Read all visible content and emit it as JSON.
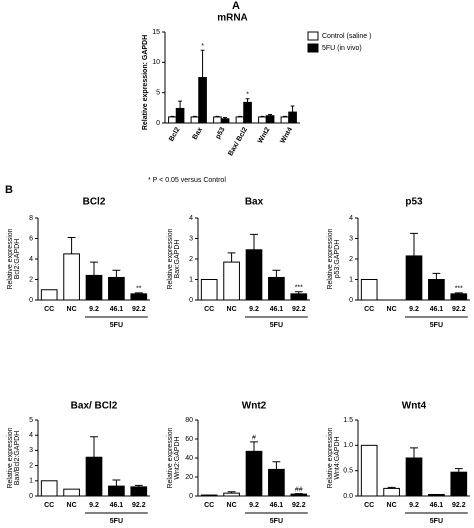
{
  "chart_data": [
    {
      "type": "bar",
      "label": "A",
      "title": "mRNA",
      "ylabel": "Relative expression: GAPDH",
      "categories": [
        "Bcl2",
        "Bax",
        "p53",
        "Bax/ Bcl2",
        "Wnt2",
        "Wnt4"
      ],
      "series": [
        {
          "name": "Control (saline )",
          "color": "#ffffff",
          "values": [
            1.0,
            1.0,
            1.0,
            1.0,
            1.0,
            1.0
          ],
          "errors": [
            0.1,
            0.1,
            0.1,
            0.1,
            0.1,
            0.1
          ],
          "value_annotations": [
            null,
            null,
            null,
            null,
            null,
            null
          ]
        },
        {
          "name": "5FU (in vivo)",
          "color": "#000000",
          "values": [
            2.4,
            7.5,
            0.7,
            3.4,
            1.2,
            1.8
          ],
          "errors": [
            1.2,
            4.5,
            0.2,
            0.6,
            0.2,
            1.0
          ],
          "value_annotations": [
            null,
            "*",
            null,
            "*",
            null,
            null
          ]
        }
      ],
      "ylim": [
        0,
        15
      ],
      "yticks": [
        0,
        5,
        10,
        15
      ],
      "note": "* P < 0.05 versus Control"
    },
    {
      "type": "bar",
      "label": "B",
      "title": "BCl2",
      "ylabel": [
        "Relative expression",
        "Bcl2:GAPDH"
      ],
      "categories": [
        "CC",
        "NC",
        "9.2",
        "46.1",
        "92.2"
      ],
      "group_label": "5FU",
      "values": [
        1.0,
        4.5,
        2.4,
        2.2,
        0.6
      ],
      "errors": [
        null,
        1.6,
        1.3,
        0.7,
        0.1
      ],
      "colors": [
        "#ffffff",
        "#ffffff",
        "#000000",
        "#000000",
        "#000000"
      ],
      "value_annotations": [
        null,
        null,
        null,
        null,
        "**"
      ],
      "ylim": [
        0,
        8
      ],
      "yticks": [
        0,
        2,
        4,
        6,
        8
      ]
    },
    {
      "type": "bar",
      "title": "Bax",
      "ylabel": [
        "Relative expression",
        "Bax:GAPDH"
      ],
      "categories": [
        "CC",
        "NC",
        "9.2",
        "46.1",
        "92.2"
      ],
      "group_label": "5FU",
      "values": [
        1.0,
        1.85,
        2.45,
        1.1,
        0.3
      ],
      "errors": [
        null,
        0.45,
        0.75,
        0.35,
        0.1
      ],
      "colors": [
        "#ffffff",
        "#ffffff",
        "#000000",
        "#000000",
        "#000000"
      ],
      "value_annotations": [
        null,
        null,
        null,
        null,
        "***"
      ],
      "ylim": [
        0,
        4
      ],
      "yticks": [
        0,
        1,
        2,
        3,
        4
      ]
    },
    {
      "type": "bar",
      "title": "p53",
      "ylabel": [
        "Relative expression",
        "p53:GAPDH"
      ],
      "categories": [
        "CC",
        "NC",
        "9.2",
        "46.1",
        "92.2"
      ],
      "group_label": "5FU",
      "values": [
        1.0,
        null,
        2.15,
        1.0,
        0.3
      ],
      "errors": [
        null,
        null,
        1.1,
        0.3,
        0.05
      ],
      "colors": [
        "#ffffff",
        "#ffffff",
        "#000000",
        "#000000",
        "#000000"
      ],
      "value_annotations": [
        null,
        null,
        null,
        null,
        "***"
      ],
      "ylim": [
        0,
        4
      ],
      "yticks": [
        0,
        1,
        2,
        3,
        4
      ]
    },
    {
      "type": "bar",
      "title": "Bax/ BCl2",
      "ylabel": [
        "Relative expression",
        "Bax/Bcl2:GAPDH"
      ],
      "categories": [
        "CC",
        "NC",
        "9.2",
        "46.1",
        "92.2"
      ],
      "group_label": "5FU",
      "values": [
        1.0,
        0.45,
        2.55,
        0.65,
        0.6
      ],
      "errors": [
        null,
        null,
        1.35,
        0.4,
        0.1
      ],
      "colors": [
        "#ffffff",
        "#ffffff",
        "#000000",
        "#000000",
        "#000000"
      ],
      "value_annotations": [
        null,
        null,
        null,
        null,
        null
      ],
      "ylim": [
        0,
        5
      ],
      "yticks": [
        0,
        1,
        2,
        3,
        4,
        5
      ]
    },
    {
      "type": "bar",
      "title": "Wnt2",
      "ylabel": [
        "Relative expression",
        "Wnt2:GAPDH"
      ],
      "categories": [
        "CC",
        "NC",
        "9.2",
        "46.1",
        "92.2"
      ],
      "group_label": "5FU",
      "values": [
        1,
        3,
        47,
        28,
        2
      ],
      "errors": [
        null,
        1.5,
        10,
        8,
        0.5
      ],
      "colors": [
        "#ffffff",
        "#ffffff",
        "#000000",
        "#000000",
        "#000000"
      ],
      "value_annotations": [
        null,
        null,
        "#",
        null,
        "##"
      ],
      "ylim": [
        0,
        80
      ],
      "yticks": [
        0,
        20,
        40,
        60,
        80
      ]
    },
    {
      "type": "bar",
      "title": "Wnt4",
      "ylabel": [
        "Relative expression",
        "Wnt4:GAPDH"
      ],
      "categories": [
        "CC",
        "NC",
        "9.2",
        "46.1",
        "92.2"
      ],
      "group_label": "5FU",
      "values": [
        1.0,
        0.15,
        0.75,
        0.03,
        0.47
      ],
      "errors": [
        null,
        0.02,
        0.2,
        null,
        0.07
      ],
      "colors": [
        "#ffffff",
        "#ffffff",
        "#000000",
        "#000000",
        "#000000"
      ],
      "value_annotations": [
        null,
        null,
        null,
        null,
        null
      ],
      "ylim": [
        0,
        1.5
      ],
      "yticks": [
        {
          "value": 0,
          "label": "0.0"
        },
        0.5,
        {
          "value": 1,
          "label": "1.0"
        },
        1.5
      ]
    }
  ]
}
